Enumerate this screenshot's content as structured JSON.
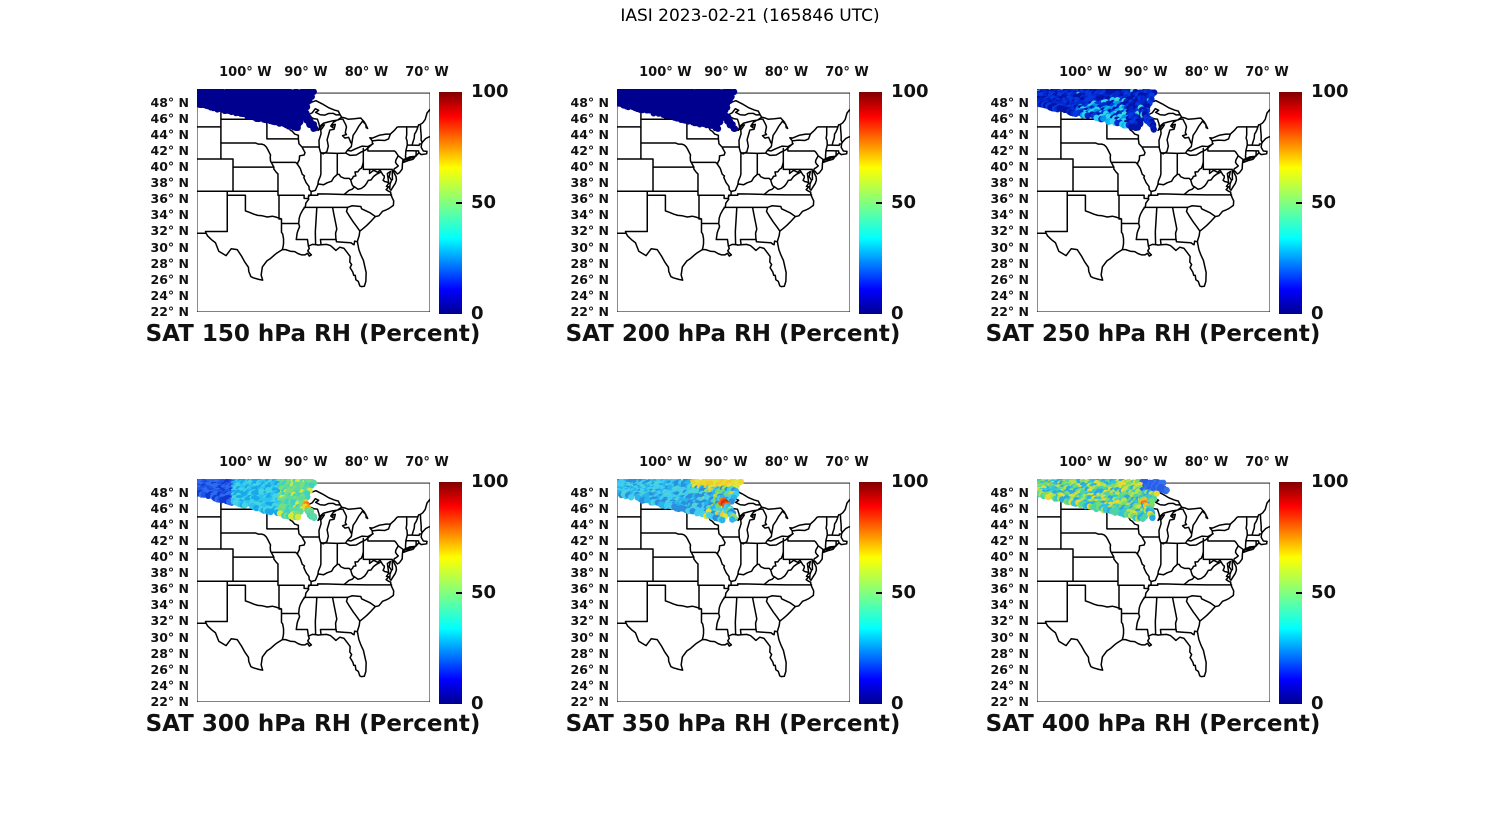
{
  "figure_title": "IASI 2023-02-21 (165846 UTC)",
  "axes": {
    "lon_ticks": [
      {
        "label": "100° W",
        "lon": -100
      },
      {
        "label": "90° W",
        "lon": -90
      },
      {
        "label": "80° W",
        "lon": -80
      },
      {
        "label": "70° W",
        "lon": -70
      }
    ],
    "lat_ticks": [
      {
        "label": "48° N",
        "lat": 48
      },
      {
        "label": "46° N",
        "lat": 46
      },
      {
        "label": "44° N",
        "lat": 44
      },
      {
        "label": "42° N",
        "lat": 42
      },
      {
        "label": "40° N",
        "lat": 40
      },
      {
        "label": "38° N",
        "lat": 38
      },
      {
        "label": "36° N",
        "lat": 36
      },
      {
        "label": "34° N",
        "lat": 34
      },
      {
        "label": "32° N",
        "lat": 32
      },
      {
        "label": "30° N",
        "lat": 30
      },
      {
        "label": "28° N",
        "lat": 28
      },
      {
        "label": "26° N",
        "lat": 26
      },
      {
        "label": "24° N",
        "lat": 24
      },
      {
        "label": "22° N",
        "lat": 22
      }
    ]
  },
  "colorbar": {
    "ticks": [
      {
        "label": "100",
        "frac": 1.0
      },
      {
        "label": "50",
        "frac": 0.5
      },
      {
        "label": "0",
        "frac": 0.0
      }
    ],
    "gradient": [
      {
        "c": "#00008f",
        "p": 0
      },
      {
        "c": "#0000ff",
        "p": 11
      },
      {
        "c": "#00ffff",
        "p": 34
      },
      {
        "c": "#80ff80",
        "p": 50
      },
      {
        "c": "#ffff00",
        "p": 66
      },
      {
        "c": "#ff0000",
        "p": 89
      },
      {
        "c": "#800000",
        "p": 100
      }
    ]
  },
  "panels": [
    {
      "level": "150",
      "title": "SAT 150 hPa RH (Percent)",
      "pattern": "navy",
      "end_lon": -88.6,
      "end_step": 0.27,
      "skip": 0.04,
      "hotspot": null
    },
    {
      "level": "200",
      "title": "SAT 200 hPa RH (Percent)",
      "pattern": "navy",
      "end_lon": -88.6,
      "end_step": 0.27,
      "skip": 0.04,
      "hotspot": null
    },
    {
      "level": "250",
      "title": "SAT 250 hPa RH (Percent)",
      "pattern": "cool",
      "end_lon": -88.4,
      "end_step": 0.27,
      "skip": 0.06,
      "hotspot": null
    },
    {
      "level": "300",
      "title": "SAT 300 hPa RH (Percent)",
      "pattern": "coolwarm",
      "end_lon": -88.6,
      "end_step": 0.27,
      "skip": 0.11,
      "hotspot": {
        "lon": -89.6,
        "lat": 46.45,
        "r": 0.55
      }
    },
    {
      "level": "350",
      "title": "SAT 350 hPa RH (Percent)",
      "pattern": "cyanhot",
      "end_lon": -87.3,
      "end_step": 0.3,
      "skip": 0.12,
      "hotspot": {
        "lon": -90.3,
        "lat": 46.7,
        "r": 0.5
      }
    },
    {
      "level": "400",
      "title": "SAT 400 hPa RH (Percent)",
      "pattern": "mixedwarm",
      "end_lon": -86.9,
      "end_step": 0.35,
      "skip": 0.12,
      "hotspot": {
        "lon": -90.0,
        "lat": 46.8,
        "r": 0.45
      },
      "blue_tail": true
    }
  ],
  "swath_palettes": {
    "navy": {
      "base": [
        "#00008f"
      ]
    },
    "cool": {
      "base": [
        "#0014aa",
        "#0028cd",
        "#0638e0"
      ],
      "cyan": [
        "#0096e6",
        "#00b9f0",
        "#2ed0f5"
      ],
      "teal": [
        "#3cdcd2"
      ]
    },
    "coolwarm": {
      "blue": [
        "#1238d2",
        "#1e55e6",
        "#2d6cee"
      ],
      "cyan": [
        "#18a8ec",
        "#2cc3ee",
        "#46d4e4"
      ],
      "green": [
        "#3ed2c3",
        "#5cdaa0",
        "#7ade7d"
      ],
      "yellow": [
        "#d8e93a"
      ],
      "hot": [
        "#ef7313",
        "#f5a800",
        "#f3d429"
      ]
    },
    "cyanhot": {
      "base": [
        "#28b4ec",
        "#41ccf2",
        "#2b8fdc",
        "#4cd4da"
      ],
      "yellow": [
        "#ecd92f",
        "#f4c827",
        "#dde63e"
      ],
      "green": [
        "#72da74",
        "#9ade5c"
      ],
      "hot": [
        "#dc2d12",
        "#f25c12",
        "#ee8d1d"
      ]
    },
    "mixedwarm": {
      "base": [
        "#32c4da",
        "#4bd4ab",
        "#7cdc69",
        "#b4e34c",
        "#e6dc32",
        "#2aaae4"
      ],
      "blue": [
        "#2b5ce6",
        "#3373ee"
      ],
      "hot": [
        "#ee7d17",
        "#dc5c12",
        "#f3c029"
      ]
    }
  },
  "chart_data": {
    "type": "heatmap",
    "title": "IASI 2023-02-21 (165846 UTC)",
    "colormap": "jet",
    "colorbar_range": [
      0,
      100
    ],
    "colorbar_ticks": [
      0,
      50,
      100
    ],
    "lon_ticks_deg_w": [
      100,
      90,
      80,
      70
    ],
    "lat_ticks_deg_n": [
      48,
      46,
      44,
      42,
      40,
      38,
      36,
      34,
      32,
      30,
      28,
      26,
      24,
      22
    ],
    "map_extent": {
      "lon_w": [
        108,
        69.5
      ],
      "lat_n": [
        22,
        49.2
      ]
    },
    "legend_position": "right of each panel",
    "panels": [
      {
        "title": "SAT 150 hPa RH (Percent)",
        "level_hpa": 150,
        "swath_summary": "diagonal satellite swath over ND/MN, uniform dark blue, RH ~0-5%"
      },
      {
        "title": "SAT 200 hPa RH (Percent)",
        "level_hpa": 200,
        "swath_summary": "same swath, uniform dark blue, RH ~0-5%"
      },
      {
        "title": "SAT 250 hPa RH (Percent)",
        "level_hpa": 250,
        "swath_summary": "mostly blue RH ~10-25% with cyan patches ~35-45% in lower mid-swath"
      },
      {
        "title": "SAT 300 hPa RH (Percent)",
        "level_hpa": 300,
        "swath_summary": "blue west ~20%, cyan core ~40-50%, yellow/orange spot ~60-75% near 90W 46.5N"
      },
      {
        "title": "SAT 350 hPa RH (Percent)",
        "level_hpa": 350,
        "swath_summary": "cyan ~40-50%, yellow ~60-70% along NE edge, red spot ~85-95% near 90W 46.7N"
      },
      {
        "title": "SAT 400 hPa RH (Percent)",
        "level_hpa": 400,
        "swath_summary": "mixed cyan/green/yellow ~40-70%, blue NE tail ~20%, orange spot ~75% near 90W 46.8N"
      }
    ]
  }
}
